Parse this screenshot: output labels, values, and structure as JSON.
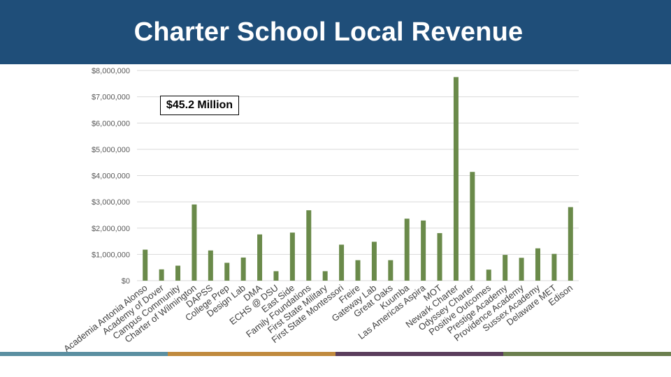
{
  "header": {
    "title": "Charter School Local Revenue"
  },
  "callout": {
    "text": "$45.2 Million"
  },
  "footer": {
    "colors": [
      "#5b8fa1",
      "#c08a3e",
      "#5a3d5c",
      "#6b7f4e"
    ]
  },
  "colors": {
    "header_bg": "#1f4e79",
    "bar": "#6a8a4a",
    "grid": "#d9d9d9"
  },
  "chart_data": {
    "type": "bar",
    "title": "",
    "xlabel": "",
    "ylabel": "",
    "ylim": [
      0,
      8000000
    ],
    "yticks": [
      {
        "value": 0,
        "label": "$0"
      },
      {
        "value": 1000000,
        "label": "$1,000,000"
      },
      {
        "value": 2000000,
        "label": "$2,000,000"
      },
      {
        "value": 3000000,
        "label": "$3,000,000"
      },
      {
        "value": 4000000,
        "label": "$4,000,000"
      },
      {
        "value": 5000000,
        "label": "$5,000,000"
      },
      {
        "value": 6000000,
        "label": "$6,000,000"
      },
      {
        "value": 7000000,
        "label": "$7,000,000"
      },
      {
        "value": 8000000,
        "label": "$8,000,000"
      }
    ],
    "grid": true,
    "categories": [
      "Academia Antonia Alonso",
      "Academy of Dover",
      "Campus Community",
      "Charter of Wilmington",
      "DAPSS",
      "College Prep",
      "Design Lab",
      "DMA",
      "ECHS @ DSU",
      "East Side",
      "Family Foundations",
      "First State Military",
      "First State Montessori",
      "Freire",
      "Gateway Lab",
      "Great Oaks",
      "Kuumba",
      "Las Americas Aspira",
      "MOT",
      "Newark Charter",
      "Odyssey Charter",
      "Positive Outcomes",
      "Prestige Academy",
      "Providence Academy",
      "Sussex Academy",
      "Delaware MET",
      "Edison"
    ],
    "values": [
      1180000,
      430000,
      570000,
      2900000,
      1150000,
      680000,
      880000,
      1760000,
      360000,
      1830000,
      2680000,
      360000,
      1370000,
      780000,
      1480000,
      780000,
      2360000,
      2290000,
      1810000,
      7750000,
      4140000,
      420000,
      980000,
      870000,
      1230000,
      1020000,
      2800000
    ]
  }
}
